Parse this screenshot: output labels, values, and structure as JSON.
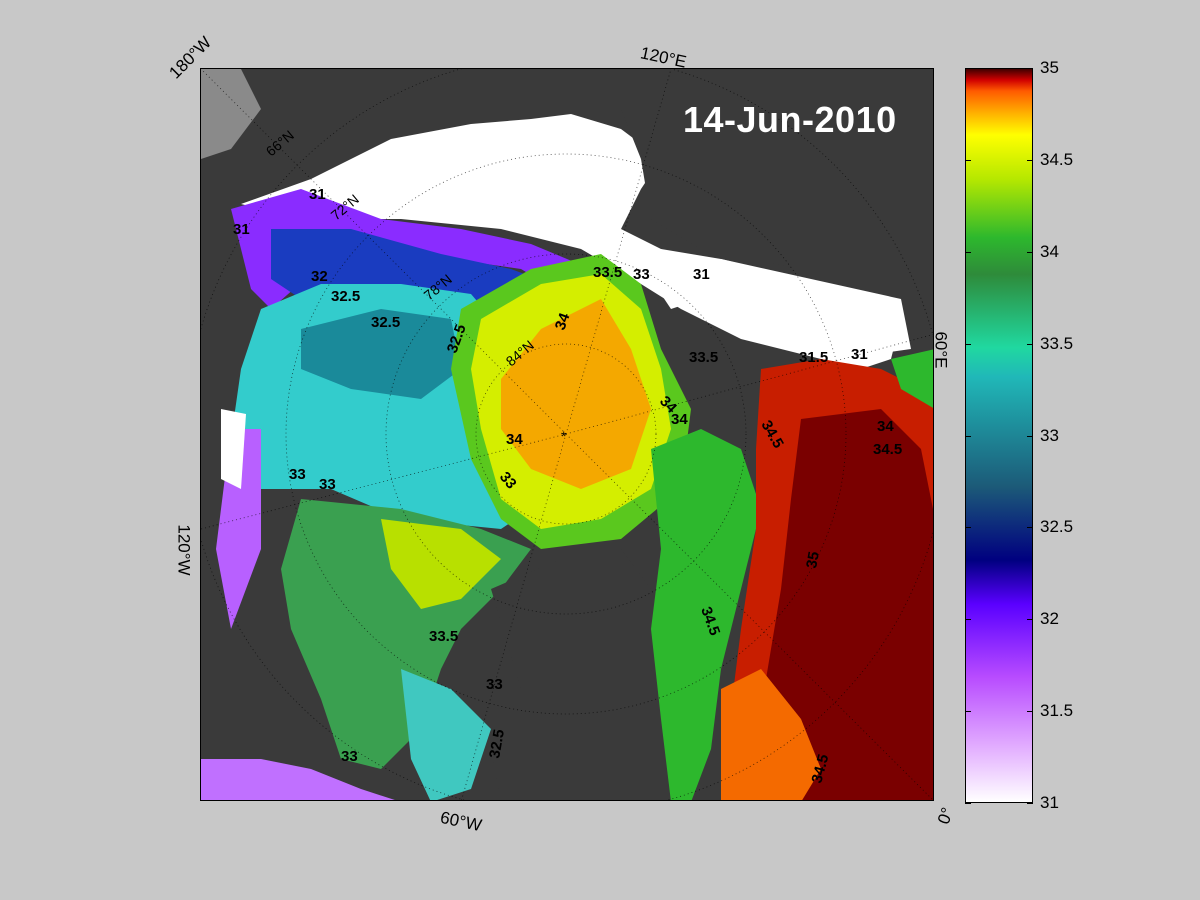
{
  "date": "14-Jun-2010",
  "longitude_labels": {
    "w180": "180°W",
    "e120": "120°E",
    "e60": "60°E",
    "w120": "120°W",
    "w60": "60°W",
    "zero": "0°"
  },
  "latitude_labels": {
    "lat66": "66°N",
    "lat72": "72°N",
    "lat78": "78°N",
    "lat84": "84°N"
  },
  "contour_labels": {
    "c31a": "31",
    "c31b": "31",
    "c31c": "31",
    "c31d": "31.5",
    "c31e": "31",
    "c32a": "32",
    "c32b": "32.5",
    "c32c": "32.5",
    "c32d": "32.5",
    "c33a": "33",
    "c33b": "33",
    "c33c": "33",
    "c33d": "33",
    "c33e": "33",
    "c33f": "33",
    "c33g": "32.5",
    "c33h": "33.5",
    "c33i": "33.5",
    "c33j": "33.5",
    "c34a": "34",
    "c34b": "34",
    "c34c": "34",
    "c34d": "34",
    "c34e": "34",
    "c34f": "34.5",
    "c34g": "34.5",
    "c34h": "34.5",
    "c34i": "34.5",
    "c35a": "35"
  },
  "colorbar": {
    "ticks": [
      "35",
      "34.5",
      "34",
      "33.5",
      "33",
      "32.5",
      "32",
      "31.5",
      "31"
    ],
    "min": 31,
    "max": 35
  }
}
